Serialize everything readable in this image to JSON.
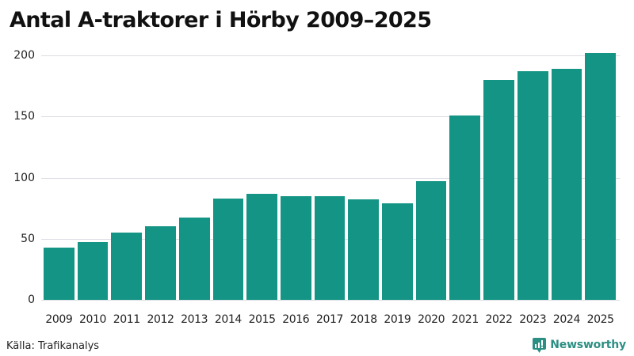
{
  "title": "Antal A-traktorer i Hörby 2009–2025",
  "source": "Källa: Trafikanalys",
  "brand": {
    "name": "Newsworthy",
    "color": "#2c8f83"
  },
  "colors": {
    "bar": "#139484",
    "grid": "#dcdde3"
  },
  "chart_data": {
    "type": "bar",
    "title": "Antal A-traktorer i Hörby 2009–2025",
    "xlabel": "",
    "ylabel": "",
    "categories": [
      "2009",
      "2010",
      "2011",
      "2012",
      "2013",
      "2014",
      "2015",
      "2016",
      "2017",
      "2018",
      "2019",
      "2020",
      "2021",
      "2022",
      "2023",
      "2024",
      "2025"
    ],
    "values": [
      43,
      47,
      55,
      60,
      67,
      83,
      87,
      85,
      85,
      82,
      79,
      97,
      151,
      180,
      187,
      189,
      202
    ],
    "ylim": [
      0,
      200
    ],
    "yticks": [
      0,
      50,
      100,
      150,
      200
    ],
    "grid": true,
    "legend": null,
    "source": "Trafikanalys"
  }
}
